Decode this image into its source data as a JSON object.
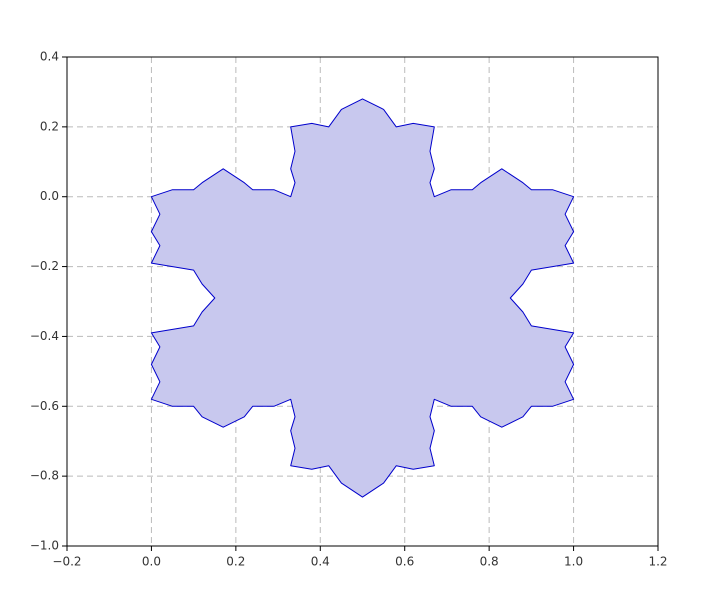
{
  "chart_data": {
    "type": "fill",
    "x": [
      0,
      0.05,
      0.1,
      0.12,
      0.17,
      0.22,
      0.24,
      0.29,
      0.33,
      0.34,
      0.33,
      0.34,
      0.33,
      0.38,
      0.42,
      0.45,
      0.5,
      0.55,
      0.58,
      0.62,
      0.67,
      0.66,
      0.67,
      0.66,
      0.67,
      0.71,
      0.76,
      0.78,
      0.83,
      0.88,
      0.9,
      0.95,
      1,
      0.98,
      1,
      0.98,
      1,
      0.95,
      0.9,
      0.88,
      0.85,
      0.88,
      0.9,
      0.95,
      1,
      0.98,
      1,
      0.98,
      1,
      0.95,
      0.9,
      0.88,
      0.83,
      0.78,
      0.76,
      0.71,
      0.67,
      0.66,
      0.67,
      0.66,
      0.67,
      0.62,
      0.58,
      0.55,
      0.5,
      0.45,
      0.42,
      0.38,
      0.33,
      0.34,
      0.33,
      0.34,
      0.33,
      0.29,
      0.24,
      0.22,
      0.17,
      0.12,
      0.1,
      0.05,
      0,
      0.02,
      0,
      0.02,
      0,
      0.05,
      0.1,
      0.12,
      0.15,
      0.12,
      0.1,
      0.05,
      0,
      0.02,
      0,
      0.02
    ],
    "y": [
      0,
      0.02,
      0.02,
      0.04,
      0.08,
      0.04,
      0.02,
      0.02,
      0,
      0.04,
      0.08,
      0.13,
      0.2,
      0.21,
      0.2,
      0.25,
      0.28,
      0.25,
      0.2,
      0.21,
      0.2,
      0.13,
      0.08,
      0.04,
      0,
      0.02,
      0.02,
      0.04,
      0.08,
      0.04,
      0.02,
      0.02,
      0,
      -0.05,
      -0.1,
      -0.14,
      -0.19,
      -0.2,
      -0.21,
      -0.25,
      -0.29,
      -0.33,
      -0.37,
      -0.38,
      -0.39,
      -0.43,
      -0.48,
      -0.53,
      -0.58,
      -0.6,
      -0.6,
      -0.63,
      -0.66,
      -0.63,
      -0.6,
      -0.6,
      -0.58,
      -0.63,
      -0.67,
      -0.72,
      -0.77,
      -0.78,
      -0.77,
      -0.82,
      -0.86,
      -0.82,
      -0.77,
      -0.78,
      -0.77,
      -0.72,
      -0.67,
      -0.63,
      -0.58,
      -0.6,
      -0.6,
      -0.63,
      -0.66,
      -0.63,
      -0.6,
      -0.6,
      -0.58,
      -0.53,
      -0.48,
      -0.43,
      -0.39,
      -0.38,
      -0.37,
      -0.33,
      -0.29,
      -0.25,
      -0.21,
      -0.2,
      -0.19,
      -0.14,
      -0.1,
      -0.05
    ],
    "color": "#c8c8ee",
    "edge_color": "#0000cc",
    "xlim": [
      -0.2,
      1.2
    ],
    "xticks": [
      {
        "value": -0.2,
        "label": "−0.2"
      },
      {
        "value": 0,
        "label": "0.0"
      },
      0.2,
      0.4,
      0.6,
      0.8,
      {
        "value": 1,
        "label": "1.0"
      },
      1.2
    ],
    "ylim": [
      -1,
      0.4
    ],
    "yticks": [
      {
        "value": -1,
        "label": "−1.0"
      },
      {
        "value": -0.8,
        "label": "−0.8"
      },
      {
        "value": -0.6,
        "label": "−0.6"
      },
      {
        "value": -0.4,
        "label": "−0.4"
      },
      {
        "value": -0.2,
        "label": "−0.2"
      },
      {
        "value": 0,
        "label": "0.0"
      },
      0.2,
      0.4
    ],
    "grid": true
  }
}
